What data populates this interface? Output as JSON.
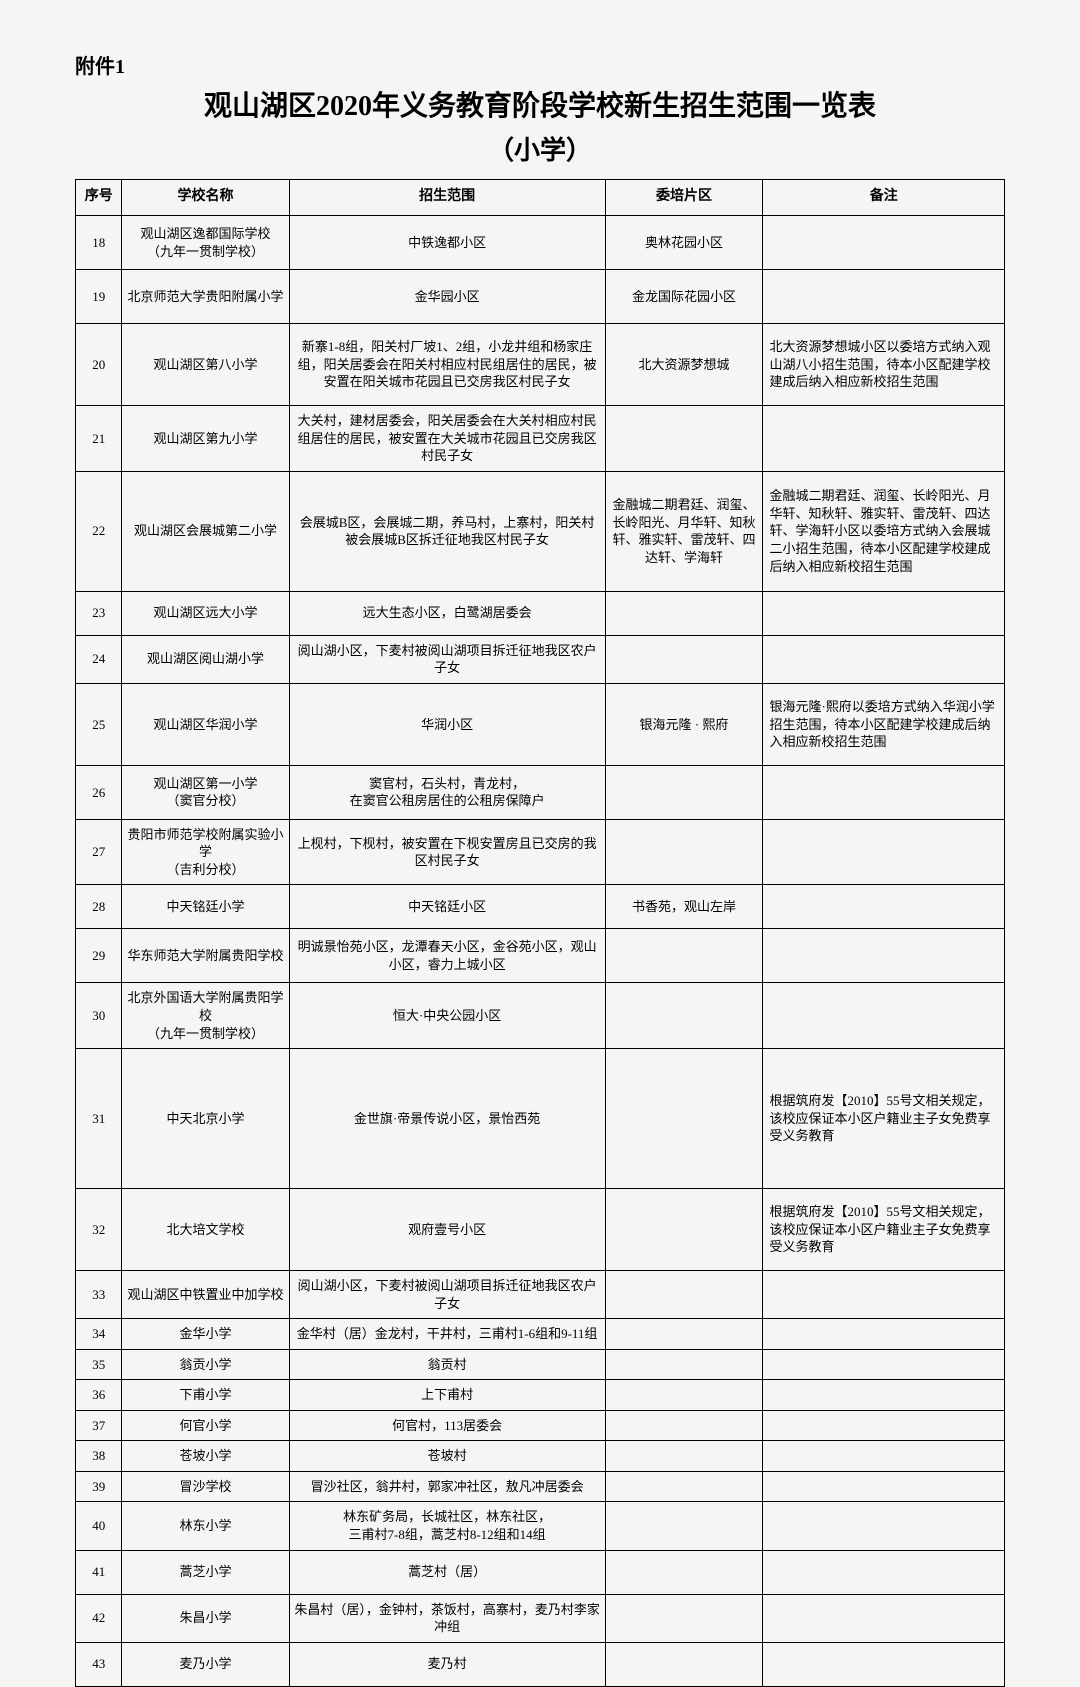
{
  "attachment": "附件1",
  "title": "观山湖区2020年义务教育阶段学校新生招生范围一览表",
  "subtitle": "（小学）",
  "headers": {
    "no": "序号",
    "school": "学校名称",
    "scope": "招生范围",
    "area": "委培片区",
    "note": "备注"
  },
  "rows": [
    {
      "no": "18",
      "school": "观山湖区逸都国际学校\n（九年一贯制学校）",
      "scope": "中铁逸都小区",
      "area": "奥林花园小区",
      "note": "",
      "h": "tall"
    },
    {
      "no": "19",
      "school": "北京师范大学贵阳附属小学",
      "scope": "金华园小区",
      "area": "金龙国际花园小区",
      "note": "",
      "h": "tall"
    },
    {
      "no": "20",
      "school": "观山湖区第八小学",
      "scope": "新寨1-8组，阳关村厂坡1、2组，小龙井组和杨家庄组，阳关居委会在阳关村相应村民组居住的居民，被安置在阳关城市花园且已交房我区村民子女",
      "area": "北大资源梦想城",
      "note": "北大资源梦想城小区以委培方式纳入观山湖八小招生范围，待本小区配建学校建成后纳入相应新校招生范围",
      "h": "vtall"
    },
    {
      "no": "21",
      "school": "观山湖区第九小学",
      "scope": "大关村，建材居委会，阳关居委会在大关村相应村民组居住的居民，被安置在大关城市花园且已交房我区村民子女",
      "area": "",
      "note": "",
      "h": "tall"
    },
    {
      "no": "22",
      "school": "观山湖区会展城第二小学",
      "scope": "会展城B区，会展城二期，养马村，上寨村，阳关村被会展城B区拆迁征地我区村民子女",
      "area": "金融城二期君廷、润玺、长岭阳光、月华轩、知秋轩、雅实轩、雷茂轩、四达轩、学海轩",
      "note": "金融城二期君廷、润玺、长岭阳光、月华轩、知秋轩、雅实轩、雷茂轩、四达轩、学海轩小区以委培方式纳入会展城二小招生范围，待本小区配建学校建成后纳入相应新校招生范围",
      "h": "vvtall"
    },
    {
      "no": "23",
      "school": "观山湖区远大小学",
      "scope": "远大生态小区，白鹭湖居委会",
      "area": "",
      "note": "",
      "h": "med"
    },
    {
      "no": "24",
      "school": "观山湖区阅山湖小学",
      "scope": "阅山湖小区，下麦村被阅山湖项目拆迁征地我区农户子女",
      "area": "",
      "note": "",
      "h": "med"
    },
    {
      "no": "25",
      "school": "观山湖区华润小学",
      "scope": "华润小区",
      "area": "银海元隆 · 熙府",
      "note": "银海元隆·熙府以委培方式纳入华润小学招生范围，待本小区配建学校建成后纳入相应新校招生范围",
      "h": "vtall"
    },
    {
      "no": "26",
      "school": "观山湖区第一小学\n（窦官分校）",
      "scope": "窦官村，石头村，青龙村，\n在窦官公租房居住的公租房保障户",
      "area": "",
      "note": "",
      "h": "tall"
    },
    {
      "no": "27",
      "school": "贵阳市师范学校附属实验小学\n（吉利分校）",
      "scope": "上枧村，下枧村，被安置在下枧安置房且已交房的我区村民子女",
      "area": "",
      "note": "",
      "h": "tall"
    },
    {
      "no": "28",
      "school": "中天铭廷小学",
      "scope": "中天铭廷小区",
      "area": "书香苑，观山左岸",
      "note": "",
      "h": "med"
    },
    {
      "no": "29",
      "school": "华东师范大学附属贵阳学校",
      "scope": "明诚景怡苑小区，龙潭春天小区，金谷苑小区，观山小区，睿力上城小区",
      "area": "",
      "note": "",
      "h": "tall"
    },
    {
      "no": "30",
      "school": "北京外国语大学附属贵阳学校\n（九年一贯制学校）",
      "scope": "恒大·中央公园小区",
      "area": "",
      "note": "",
      "h": "tall"
    },
    {
      "no": "31",
      "school": "中天北京小学",
      "scope": "金世旗·帝景传说小区，景怡西苑",
      "area": "",
      "note": "根据筑府发【2010】55号文相关规定，该校应保证本小区户籍业主子女免费享受义务教育",
      "h": "xtall"
    },
    {
      "no": "32",
      "school": "北大培文学校",
      "scope": "观府壹号小区",
      "area": "",
      "note": "根据筑府发【2010】55号文相关规定，该校应保证本小区户籍业主子女免费享受义务教育",
      "h": "vtall"
    },
    {
      "no": "33",
      "school": "观山湖区中铁置业中加学校",
      "scope": "阅山湖小区，下麦村被阅山湖项目拆迁征地我区农户子女",
      "area": "",
      "note": "",
      "h": "short"
    },
    {
      "no": "34",
      "school": "金华小学",
      "scope": "金华村（居）金龙村，干井村，三甫村1-6组和9-11组",
      "area": "",
      "note": "",
      "h": "short"
    },
    {
      "no": "35",
      "school": "翁贡小学",
      "scope": "翁贡村",
      "area": "",
      "note": "",
      "h": "short"
    },
    {
      "no": "36",
      "school": "下甫小学",
      "scope": "上下甫村",
      "area": "",
      "note": "",
      "h": "short"
    },
    {
      "no": "37",
      "school": "何官小学",
      "scope": "何官村，113居委会",
      "area": "",
      "note": "",
      "h": "short"
    },
    {
      "no": "38",
      "school": "苍坡小学",
      "scope": "苍坡村",
      "area": "",
      "note": "",
      "h": "short"
    },
    {
      "no": "39",
      "school": "冒沙学校",
      "scope": "冒沙社区，翁井村，郭家冲社区，敖凡冲居委会",
      "area": "",
      "note": "",
      "h": "short"
    },
    {
      "no": "40",
      "school": "林东小学",
      "scope": "林东矿务局，长城社区，林东社区，\n三甫村7-8组，蒿芝村8-12组和14组",
      "area": "",
      "note": "",
      "h": "med"
    },
    {
      "no": "41",
      "school": "蒿芝小学",
      "scope": "蒿芝村（居）",
      "area": "",
      "note": "",
      "h": "med"
    },
    {
      "no": "42",
      "school": "朱昌小学",
      "scope": "朱昌村（居），金钟村，茶饭村，高寨村，麦乃村李家冲组",
      "area": "",
      "note": "",
      "h": "med"
    },
    {
      "no": "43",
      "school": "麦乃小学",
      "scope": "麦乃村",
      "area": "",
      "note": "",
      "h": "med"
    }
  ]
}
